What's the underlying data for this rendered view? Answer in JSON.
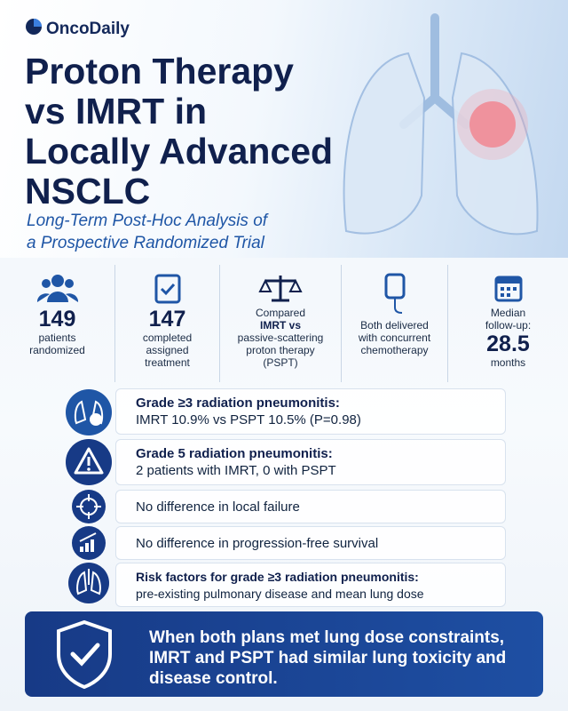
{
  "brand": "OncoDaily",
  "header": {
    "title_lines": [
      "Proton Therapy",
      "vs IMRT in",
      "Locally Advanced",
      "NSCLC"
    ],
    "subtitle_lines": [
      "Long-Term Post-Hoc Analysis of",
      "a Prospective Randomized Trial"
    ]
  },
  "stats": [
    {
      "value": 149,
      "label": "patients randomized"
    },
    {
      "value": 147,
      "label": "completed assigned treatment"
    },
    {
      "pre": "Compared",
      "bold": "IMRT vs",
      "post": "passive-scattering proton therapy (PSPT)"
    },
    {
      "label": "Both delivered with concurrent chemotherapy"
    },
    {
      "pre": "Median follow-up:",
      "value": 28.5,
      "post": "months"
    }
  ],
  "findings": [
    {
      "heading": "Grade ≥3 radiation pneumonitis:",
      "text": "IMRT 10.9% vs PSPT 10.5% (P=0.98)"
    },
    {
      "heading": "Grade 5 radiation pneumonitis:",
      "text": "2 patients with IMRT, 0 with PSPT"
    },
    {
      "text": "No difference in local failure"
    },
    {
      "text": "No difference in progression-free survival"
    },
    {
      "heading": "Risk factors for grade ≥3 radiation pneumonitis:",
      "text": "pre-existing pulmonary disease and mean lung dose"
    }
  ],
  "conclusion": "When both plans met lung dose constraints, IMRT and PSPT had similar lung toxicity and disease control."
}
